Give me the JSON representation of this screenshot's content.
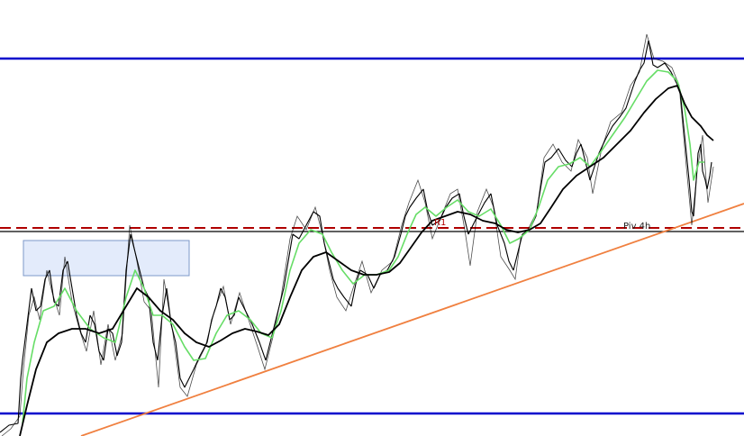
{
  "chart_data": {
    "type": "candlestick",
    "annotations": [
      "R1",
      "Piv 4h"
    ]
  }
}
